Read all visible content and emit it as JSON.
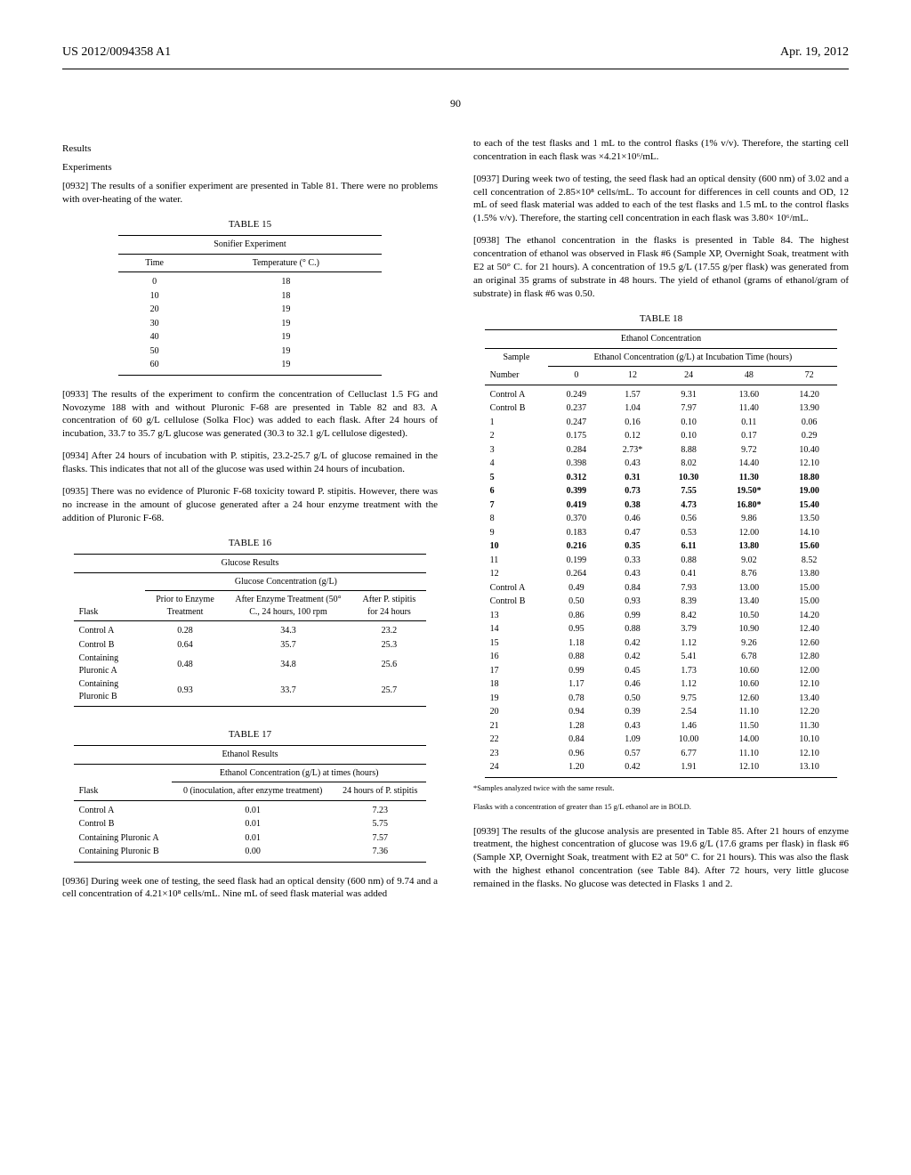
{
  "header": {
    "pub": "US 2012/0094358 A1",
    "date": "Apr. 19, 2012",
    "page": "90"
  },
  "left": {
    "results": "Results",
    "experiments": "Experiments",
    "p0932": "[0932]   The results of a sonifier experiment are presented in Table 81. There were no problems with over-heating of the water.",
    "t15": {
      "caption": "TABLE 15",
      "title": "Sonifier Experiment",
      "h1": "Time",
      "h2": "Temperature (° C.)",
      "rows": [
        [
          "0",
          "18"
        ],
        [
          "10",
          "18"
        ],
        [
          "20",
          "19"
        ],
        [
          "30",
          "19"
        ],
        [
          "40",
          "19"
        ],
        [
          "50",
          "19"
        ],
        [
          "60",
          "19"
        ]
      ]
    },
    "p0933": "[0933]   The results of the experiment to confirm the concentration of Celluclast 1.5 FG and Novozyme 188 with and without Pluronic F-68 are presented in Table 82 and 83. A concentration of 60 g/L cellulose (Solka Floc) was added to each flask. After 24 hours of incubation, 33.7 to 35.7 g/L glucose was generated (30.3 to 32.1 g/L cellulose digested).",
    "p0934": "[0934]   After 24 hours of incubation with P. stipitis, 23.2-25.7 g/L of glucose remained in the flasks. This indicates that not all of the glucose was used within 24 hours of incubation.",
    "p0935": "[0935]   There was no evidence of Pluronic F-68 toxicity toward P. stipitis. However, there was no increase in the amount of glucose generated after a 24 hour enzyme treatment with the addition of Pluronic F-68.",
    "t16": {
      "caption": "TABLE 16",
      "title": "Glucose Results",
      "span": "Glucose Concentration (g/L)",
      "h0": "Flask",
      "h1": "Prior to Enzyme Treatment",
      "h2": "After Enzyme Treatment (50° C., 24 hours, 100 rpm",
      "h3": "After P. stipitis for 24 hours",
      "rows": [
        [
          "Control A",
          "0.28",
          "34.3",
          "23.2"
        ],
        [
          "Control B",
          "0.64",
          "35.7",
          "25.3"
        ],
        [
          "Containing Pluronic A",
          "0.48",
          "34.8",
          "25.6"
        ],
        [
          "Containing Pluronic B",
          "0.93",
          "33.7",
          "25.7"
        ]
      ]
    },
    "t17": {
      "caption": "TABLE 17",
      "title": "Ethanol Results",
      "span": "Ethanol Concentration (g/L) at times (hours)",
      "h0": "Flask",
      "h1": "0 (inoculation, after enzyme treatment)",
      "h2": "24 hours of P. stipitis",
      "rows": [
        [
          "Control A",
          "0.01",
          "7.23"
        ],
        [
          "Control B",
          "0.01",
          "5.75"
        ],
        [
          "Containing Pluronic A",
          "0.01",
          "7.57"
        ],
        [
          "Containing Pluronic B",
          "0.00",
          "7.36"
        ]
      ]
    },
    "p0936": "[0936]   During week one of testing, the seed flask had an optical density (600 nm) of 9.74 and a cell concentration of 4.21×10⁸ cells/mL. Nine mL of seed flask material was added"
  },
  "right": {
    "p_cont": "to each of the test flasks and 1 mL to the control flasks (1% v/v). Therefore, the starting cell concentration in each flask was ×4.21×10⁶/mL.",
    "p0937": "[0937]   During week two of testing, the seed flask had an optical density (600 nm) of 3.02 and a cell concentration of 2.85×10⁸ cells/mL. To account for differences in cell counts and OD, 12 mL of seed flask material was added to each of the test flasks and 1.5 mL to the control flasks (1.5% v/v). Therefore, the starting cell concentration in each flask was 3.80× 10⁶/mL.",
    "p0938": "[0938]   The ethanol concentration in the flasks is presented in Table 84. The highest concentration of ethanol was observed in Flask #6 (Sample XP, Overnight Soak, treatment with E2 at 50° C. for 21 hours). A concentration of 19.5 g/L (17.55 g/per flask) was generated from an original 35 grams of substrate in 48 hours. The yield of ethanol (grams of ethanol/gram of substrate) in flask #6 was 0.50.",
    "t18": {
      "caption": "TABLE 18",
      "title": "Ethanol Concentration",
      "span": "Ethanol Concentration (g/L) at Incubation Time (hours)",
      "h0": "Sample",
      "sub0": "Number",
      "cols": [
        "0",
        "12",
        "24",
        "48",
        "72"
      ],
      "rows": [
        {
          "n": "Control A",
          "v": [
            "0.249",
            "1.57",
            "9.31",
            "13.60",
            "14.20"
          ],
          "b": false
        },
        {
          "n": "Control B",
          "v": [
            "0.237",
            "1.04",
            "7.97",
            "11.40",
            "13.90"
          ],
          "b": false
        },
        {
          "n": "1",
          "v": [
            "0.247",
            "0.16",
            "0.10",
            "0.11",
            "0.06"
          ],
          "b": false
        },
        {
          "n": "2",
          "v": [
            "0.175",
            "0.12",
            "0.10",
            "0.17",
            "0.29"
          ],
          "b": false
        },
        {
          "n": "3",
          "v": [
            "0.284",
            "2.73*",
            "8.88",
            "9.72",
            "10.40"
          ],
          "b": false
        },
        {
          "n": "4",
          "v": [
            "0.398",
            "0.43",
            "8.02",
            "14.40",
            "12.10"
          ],
          "b": false
        },
        {
          "n": "5",
          "v": [
            "0.312",
            "0.31",
            "10.30",
            "11.30",
            "18.80"
          ],
          "b": true
        },
        {
          "n": "6",
          "v": [
            "0.399",
            "0.73",
            "7.55",
            "19.50*",
            "19.00"
          ],
          "b": true
        },
        {
          "n": "7",
          "v": [
            "0.419",
            "0.38",
            "4.73",
            "16.80*",
            "15.40"
          ],
          "b": true
        },
        {
          "n": "8",
          "v": [
            "0.370",
            "0.46",
            "0.56",
            "9.86",
            "13.50"
          ],
          "b": false
        },
        {
          "n": "9",
          "v": [
            "0.183",
            "0.47",
            "0.53",
            "12.00",
            "14.10"
          ],
          "b": false
        },
        {
          "n": "10",
          "v": [
            "0.216",
            "0.35",
            "6.11",
            "13.80",
            "15.60"
          ],
          "b": true
        },
        {
          "n": "11",
          "v": [
            "0.199",
            "0.33",
            "0.88",
            "9.02",
            "8.52"
          ],
          "b": false
        },
        {
          "n": "12",
          "v": [
            "0.264",
            "0.43",
            "0.41",
            "8.76",
            "13.80"
          ],
          "b": false
        },
        {
          "n": "Control A",
          "v": [
            "0.49",
            "0.84",
            "7.93",
            "13.00",
            "15.00"
          ],
          "b": false
        },
        {
          "n": "Control B",
          "v": [
            "0.50",
            "0.93",
            "8.39",
            "13.40",
            "15.00"
          ],
          "b": false
        },
        {
          "n": "13",
          "v": [
            "0.86",
            "0.99",
            "8.42",
            "10.50",
            "14.20"
          ],
          "b": false
        },
        {
          "n": "14",
          "v": [
            "0.95",
            "0.88",
            "3.79",
            "10.90",
            "12.40"
          ],
          "b": false
        },
        {
          "n": "15",
          "v": [
            "1.18",
            "0.42",
            "1.12",
            "9.26",
            "12.60"
          ],
          "b": false
        },
        {
          "n": "16",
          "v": [
            "0.88",
            "0.42",
            "5.41",
            "6.78",
            "12.80"
          ],
          "b": false
        },
        {
          "n": "17",
          "v": [
            "0.99",
            "0.45",
            "1.73",
            "10.60",
            "12.00"
          ],
          "b": false
        },
        {
          "n": "18",
          "v": [
            "1.17",
            "0.46",
            "1.12",
            "10.60",
            "12.10"
          ],
          "b": false
        },
        {
          "n": "19",
          "v": [
            "0.78",
            "0.50",
            "9.75",
            "12.60",
            "13.40"
          ],
          "b": false
        },
        {
          "n": "20",
          "v": [
            "0.94",
            "0.39",
            "2.54",
            "11.10",
            "12.20"
          ],
          "b": false
        },
        {
          "n": "21",
          "v": [
            "1.28",
            "0.43",
            "1.46",
            "11.50",
            "11.30"
          ],
          "b": false
        },
        {
          "n": "22",
          "v": [
            "0.84",
            "1.09",
            "10.00",
            "14.00",
            "10.10"
          ],
          "b": false
        },
        {
          "n": "23",
          "v": [
            "0.96",
            "0.57",
            "6.77",
            "11.10",
            "12.10"
          ],
          "b": false
        },
        {
          "n": "24",
          "v": [
            "1.20",
            "0.42",
            "1.91",
            "12.10",
            "13.10"
          ],
          "b": false
        }
      ],
      "fn1": "*Samples analyzed twice with the same result.",
      "fn2": "Flasks with a concentration of greater than 15 g/L ethanol are in BOLD."
    },
    "p0939": "[0939]   The results of the glucose analysis are presented in Table 85. After 21 hours of enzyme treatment, the highest concentration of glucose was 19.6 g/L (17.6 grams per flask) in flask #6 (Sample XP, Overnight Soak, treatment with E2 at 50° C. for 21 hours). This was also the flask with the highest ethanol concentration (see Table 84). After 72 hours, very little glucose remained in the flasks. No glucose was detected in Flasks 1 and 2."
  }
}
